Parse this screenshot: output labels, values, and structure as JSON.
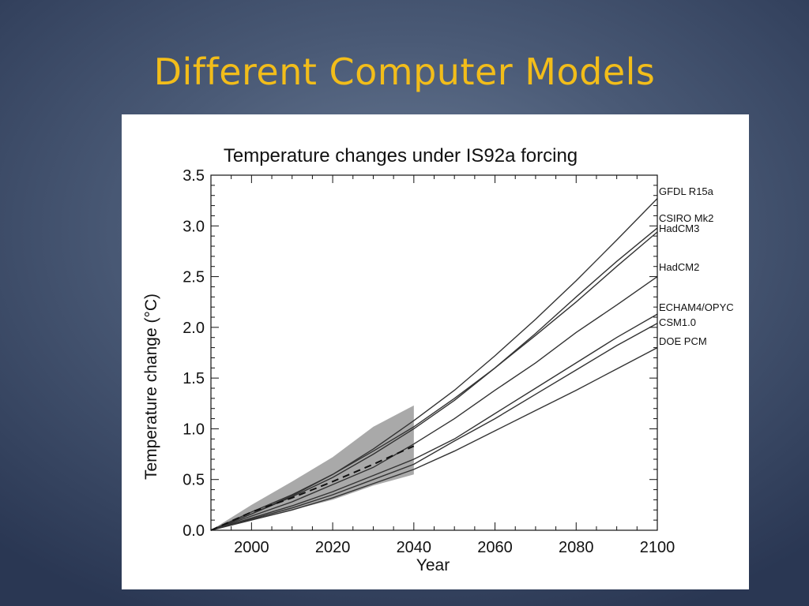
{
  "slide": {
    "title": "Different Computer Models"
  },
  "colors": {
    "title": "#f2bd1a",
    "series_line": "#333333",
    "band_fill": "#9a9a9a",
    "background_dark": "#2a3753"
  },
  "chart_data": {
    "type": "line",
    "title": "Temperature changes under IS92a forcing",
    "xlabel": "Year",
    "ylabel": "Temperature change (°C)",
    "xlim": [
      1990,
      2100
    ],
    "ylim": [
      0,
      3.5
    ],
    "x_ticks": [
      2000,
      2020,
      2040,
      2060,
      2080,
      2100
    ],
    "y_ticks": [
      0.0,
      0.5,
      1.0,
      1.5,
      2.0,
      2.5,
      3.0,
      3.5
    ],
    "y_tick_labels": [
      "0.0",
      "0.5",
      "1.0",
      "1.5",
      "2.0",
      "2.5",
      "3.0",
      "3.5"
    ],
    "grid": false,
    "legend": "series labels at right end of lines",
    "series": [
      {
        "name": "GFDL R15a",
        "x": [
          1990,
          2000,
          2010,
          2020,
          2030,
          2040,
          2050,
          2060,
          2070,
          2080,
          2090,
          2100
        ],
        "y": [
          0.0,
          0.18,
          0.35,
          0.55,
          0.8,
          1.08,
          1.38,
          1.72,
          2.08,
          2.46,
          2.86,
          3.27
        ]
      },
      {
        "name": "CSIRO Mk2",
        "x": [
          1990,
          2000,
          2010,
          2020,
          2030,
          2040,
          2050,
          2060,
          2070,
          2080,
          2090,
          2100
        ],
        "y": [
          0.0,
          0.16,
          0.33,
          0.52,
          0.75,
          1.0,
          1.28,
          1.6,
          1.94,
          2.3,
          2.65,
          2.98
        ]
      },
      {
        "name": "HadCM3",
        "x": [
          1990,
          2000,
          2010,
          2020,
          2030,
          2040,
          2050,
          2060,
          2070,
          2080,
          2090,
          2100
        ],
        "y": [
          0.0,
          0.16,
          0.34,
          0.55,
          0.78,
          1.02,
          1.3,
          1.6,
          1.92,
          2.25,
          2.6,
          2.94
        ]
      },
      {
        "name": "HadCM2",
        "x": [
          1990,
          2000,
          2010,
          2020,
          2030,
          2040,
          2050,
          2060,
          2070,
          2080,
          2090,
          2100
        ],
        "y": [
          0.0,
          0.14,
          0.28,
          0.45,
          0.62,
          0.85,
          1.1,
          1.38,
          1.65,
          1.95,
          2.22,
          2.5
        ]
      },
      {
        "name": "ECHAM4/OPYC",
        "x": [
          1990,
          2000,
          2010,
          2020,
          2030,
          2040,
          2050,
          2060,
          2070,
          2080,
          2090,
          2100
        ],
        "y": [
          0.0,
          0.12,
          0.24,
          0.38,
          0.54,
          0.7,
          0.9,
          1.15,
          1.4,
          1.65,
          1.9,
          2.13
        ]
      },
      {
        "name": "CSM1.0",
        "x": [
          1990,
          2000,
          2010,
          2020,
          2030,
          2040,
          2050,
          2060,
          2070,
          2080,
          2090,
          2100
        ],
        "y": [
          0.0,
          0.11,
          0.22,
          0.35,
          0.5,
          0.65,
          0.88,
          1.1,
          1.34,
          1.58,
          1.82,
          2.04
        ]
      },
      {
        "name": "DOE PCM",
        "x": [
          1990,
          2000,
          2010,
          2020,
          2030,
          2040,
          2050,
          2060,
          2070,
          2080,
          2090,
          2100
        ],
        "y": [
          0.0,
          0.1,
          0.2,
          0.32,
          0.46,
          0.6,
          0.78,
          0.98,
          1.18,
          1.38,
          1.59,
          1.8
        ]
      }
    ],
    "ensemble_mean": {
      "style": "dashed",
      "x": [
        1990,
        2000,
        2010,
        2020,
        2030,
        2040
      ],
      "y": [
        0.0,
        0.18,
        0.32,
        0.48,
        0.65,
        0.83
      ]
    },
    "uncertainty_band": {
      "x": [
        1990,
        2000,
        2010,
        2020,
        2030,
        2040
      ],
      "upper": [
        0.0,
        0.25,
        0.48,
        0.72,
        1.02,
        1.23
      ],
      "lower": [
        0.0,
        0.1,
        0.2,
        0.3,
        0.44,
        0.55
      ]
    }
  }
}
